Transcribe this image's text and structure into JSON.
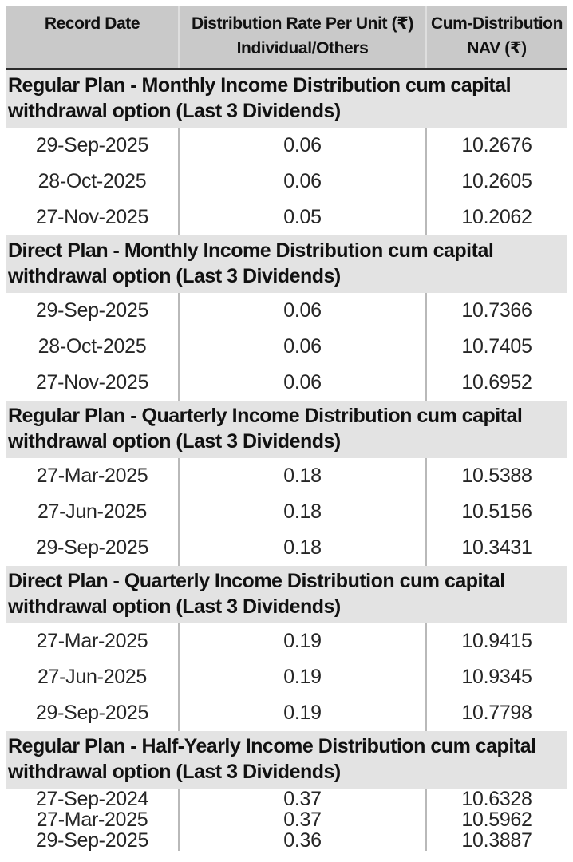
{
  "colors": {
    "header_bg": "#c9c9c9",
    "section_bg": "#e3e3e3",
    "row_bg": "#ffffff",
    "header_separator": "#2b2b2b",
    "column_divider": "#b9b9b9",
    "text": "#1c1c1c"
  },
  "table": {
    "columns": [
      {
        "line1": "Record Date",
        "line2": ""
      },
      {
        "line1": "Distribution Rate Per Unit (₹)",
        "line2": "Individual/Others"
      },
      {
        "line1": "Cum-Distribution",
        "line2": "NAV (₹)"
      }
    ],
    "sections": [
      {
        "title": "Regular Plan - Monthly Income Distribution cum capital withdrawal option (Last 3 Dividends)",
        "rows": [
          {
            "record_date": "29-Sep-2025",
            "rate": "0.06",
            "nav": "10.2676"
          },
          {
            "record_date": "28-Oct-2025",
            "rate": "0.06",
            "nav": "10.2605"
          },
          {
            "record_date": "27-Nov-2025",
            "rate": "0.05",
            "nav": "10.2062"
          }
        ]
      },
      {
        "title": "Direct Plan - Monthly Income Distribution cum capital withdrawal option (Last 3 Dividends)",
        "rows": [
          {
            "record_date": "29-Sep-2025",
            "rate": "0.06",
            "nav": "10.7366"
          },
          {
            "record_date": "28-Oct-2025",
            "rate": "0.06",
            "nav": "10.7405"
          },
          {
            "record_date": "27-Nov-2025",
            "rate": "0.06",
            "nav": "10.6952"
          }
        ]
      },
      {
        "title": "Regular Plan - Quarterly Income Distribution cum capital withdrawal option (Last 3 Dividends)",
        "rows": [
          {
            "record_date": "27-Mar-2025",
            "rate": "0.18",
            "nav": "10.5388"
          },
          {
            "record_date": "27-Jun-2025",
            "rate": "0.18",
            "nav": "10.5156"
          },
          {
            "record_date": "29-Sep-2025",
            "rate": "0.18",
            "nav": "10.3431"
          }
        ]
      },
      {
        "title": "Direct Plan - Quarterly Income Distribution cum capital withdrawal option (Last 3 Dividends)",
        "rows": [
          {
            "record_date": "27-Mar-2025",
            "rate": "0.19",
            "nav": "10.9415"
          },
          {
            "record_date": "27-Jun-2025",
            "rate": "0.19",
            "nav": "10.9345"
          },
          {
            "record_date": "29-Sep-2025",
            "rate": "0.19",
            "nav": "10.7798"
          }
        ]
      },
      {
        "title": "Regular Plan - Half-Yearly Income Distribution cum capital withdrawal option (Last 3 Dividends)",
        "rows": [
          {
            "record_date": "27-Sep-2024",
            "rate": "0.37",
            "nav": "10.6328"
          },
          {
            "record_date": "27-Mar-2025",
            "rate": "0.37",
            "nav": "10.5962"
          },
          {
            "record_date": "29-Sep-2025",
            "rate": "0.36",
            "nav": "10.3887"
          }
        ]
      }
    ]
  }
}
